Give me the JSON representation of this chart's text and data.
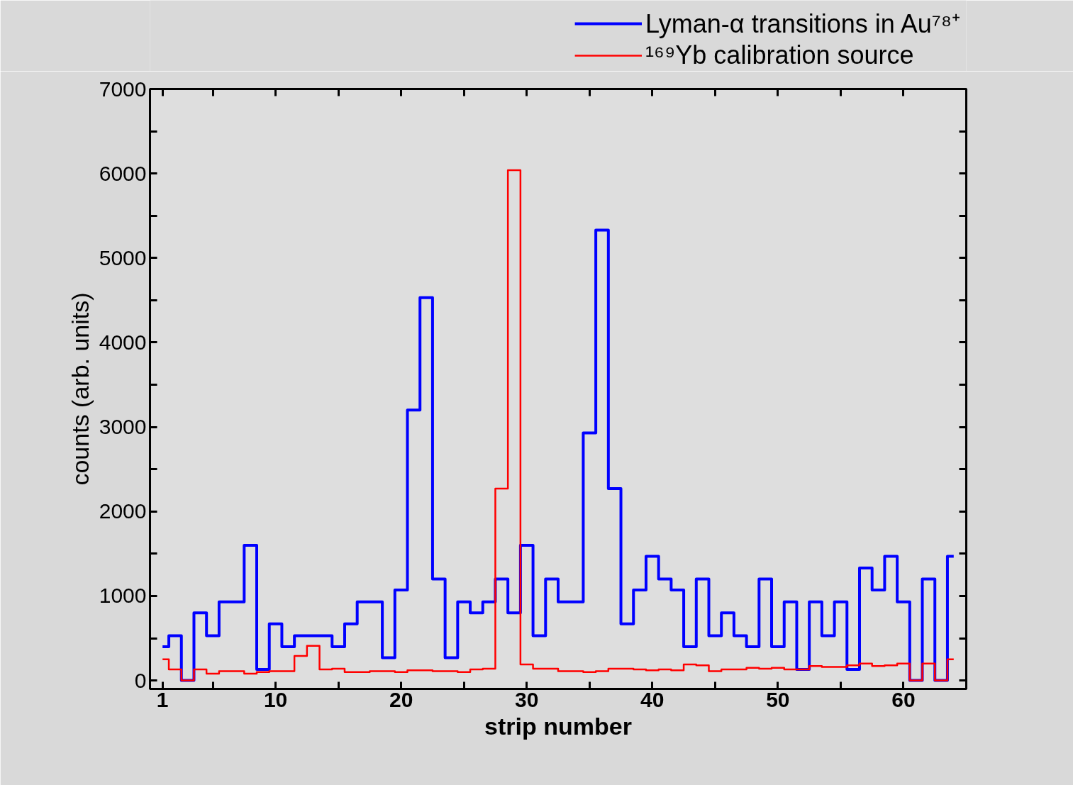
{
  "chart_data": {
    "type": "step",
    "xlabel": "strip number",
    "ylabel": "counts (arb. units)",
    "x": [
      1,
      2,
      3,
      4,
      5,
      6,
      7,
      8,
      9,
      10,
      11,
      12,
      13,
      14,
      15,
      16,
      17,
      18,
      19,
      20,
      21,
      22,
      23,
      24,
      25,
      26,
      27,
      28,
      29,
      30,
      31,
      32,
      33,
      34,
      35,
      36,
      37,
      38,
      39,
      40,
      41,
      42,
      43,
      44,
      45,
      46,
      47,
      48,
      49,
      50,
      51,
      52,
      53,
      54,
      55,
      56,
      57,
      58,
      59,
      60,
      61,
      62,
      63,
      64
    ],
    "series": [
      {
        "name": "Lyman-α transitions in Au⁷⁸⁺",
        "color": "#0000ff",
        "values": [
          400,
          530,
          0,
          800,
          530,
          930,
          930,
          1600,
          130,
          670,
          400,
          530,
          530,
          530,
          400,
          670,
          930,
          930,
          270,
          1070,
          3200,
          4530,
          1200,
          270,
          930,
          800,
          930,
          1200,
          800,
          1600,
          530,
          1200,
          930,
          930,
          2930,
          5330,
          2270,
          670,
          1070,
          1470,
          1200,
          1070,
          400,
          1200,
          530,
          800,
          530,
          400,
          1200,
          400,
          930,
          130,
          930,
          530,
          930,
          130,
          1330,
          1070,
          1470,
          930,
          0,
          1200,
          0,
          1470
        ]
      },
      {
        "name": "¹⁶⁹Yb calibration source",
        "color": "#ff0000",
        "values": [
          250,
          130,
          0,
          130,
          80,
          110,
          110,
          80,
          100,
          110,
          110,
          290,
          410,
          130,
          140,
          100,
          100,
          110,
          110,
          100,
          120,
          120,
          110,
          110,
          100,
          130,
          140,
          2270,
          6040,
          190,
          140,
          140,
          110,
          110,
          100,
          110,
          140,
          140,
          130,
          120,
          130,
          120,
          190,
          180,
          110,
          130,
          130,
          150,
          140,
          150,
          130,
          130,
          170,
          160,
          160,
          180,
          200,
          170,
          180,
          200,
          0,
          200,
          0,
          250
        ]
      }
    ],
    "xlim": [
      0,
      65
    ],
    "xticks": [
      1,
      10,
      20,
      30,
      40,
      50,
      60,
      {
        "value": 5,
        "label": null
      },
      {
        "value": 15,
        "label": null
      },
      {
        "value": 25,
        "label": null
      },
      {
        "value": 35,
        "label": null
      },
      {
        "value": 45,
        "label": null
      },
      {
        "value": 55,
        "label": null
      },
      {
        "value": 65,
        "label": null
      }
    ],
    "ylim": [
      -100,
      7000
    ],
    "yticks": [
      0,
      1000,
      2000,
      3000,
      4000,
      5000,
      6000,
      7000,
      {
        "value": 500,
        "label": null
      },
      {
        "value": 1500,
        "label": null
      },
      {
        "value": 2500,
        "label": null
      },
      {
        "value": 3500,
        "label": null
      },
      {
        "value": 4500,
        "label": null
      },
      {
        "value": 5500,
        "label": null
      },
      {
        "value": 6500,
        "label": null
      }
    ],
    "grid": false,
    "legend": "top right",
    "marker": "none",
    "line_style": "solid"
  }
}
